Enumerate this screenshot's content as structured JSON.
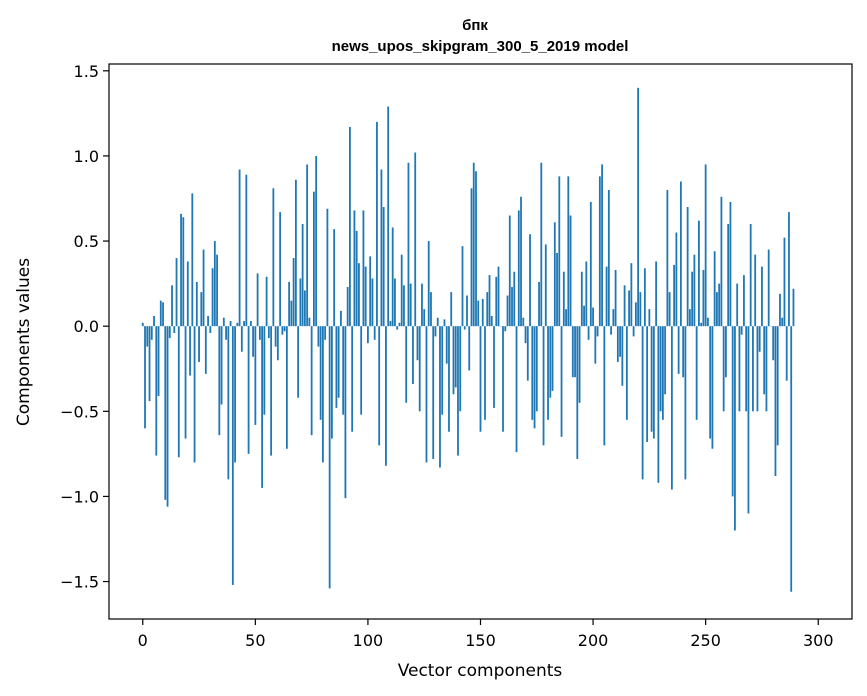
{
  "chart_data": {
    "type": "bar",
    "title": "бпк",
    "subtitle": "news_upos_skipgram_300_5_2019 model",
    "xlabel": "Vector components",
    "ylabel": "Components values",
    "xlim": [
      -15,
      315
    ],
    "ylim": [
      -1.72,
      1.54
    ],
    "xticks": [
      0,
      50,
      100,
      150,
      200,
      250,
      300
    ],
    "yticks": [
      -1.5,
      -1.0,
      -0.5,
      0.0,
      0.5,
      1.0,
      1.5
    ],
    "xtick_labels": [
      "0",
      "50",
      "100",
      "150",
      "200",
      "250",
      "300"
    ],
    "ytick_labels": [
      "−1.5",
      "−1.0",
      "−0.5",
      "0.0",
      "0.5",
      "1.0",
      "1.5"
    ],
    "bar_color": "#1f77b4",
    "values": [
      0.02,
      -0.6,
      -0.12,
      -0.44,
      -0.08,
      0.06,
      -0.76,
      -0.41,
      0.15,
      0.14,
      -1.02,
      -1.06,
      -0.07,
      0.24,
      -0.04,
      0.4,
      -0.77,
      0.66,
      0.64,
      -0.66,
      0.38,
      -0.29,
      0.78,
      -0.8,
      0.26,
      -0.21,
      0.2,
      0.45,
      -0.28,
      0.06,
      -0.04,
      0.34,
      0.5,
      0.42,
      -0.64,
      -0.46,
      0.05,
      -0.08,
      -0.9,
      0.03,
      -1.52,
      -0.8,
      0.02,
      0.92,
      -0.15,
      0.03,
      0.89,
      -0.75,
      0.03,
      -0.18,
      -0.58,
      0.31,
      -0.08,
      -0.95,
      -0.52,
      0.29,
      -0.07,
      -0.76,
      0.81,
      -0.12,
      -0.2,
      0.67,
      -0.05,
      -0.03,
      -0.72,
      0.26,
      0.15,
      0.4,
      0.86,
      -0.42,
      0.28,
      0.6,
      0.21,
      0.95,
      0.05,
      -0.64,
      0.79,
      1.0,
      -0.12,
      -0.55,
      -0.8,
      -0.08,
      0.69,
      -1.54,
      -0.66,
      0.57,
      -0.48,
      -0.42,
      0.09,
      -0.52,
      -1.01,
      0.23,
      1.17,
      -0.62,
      0.68,
      0.56,
      0.37,
      -0.52,
      0.68,
      0.35,
      -0.1,
      0.41,
      0.28,
      -0.08,
      1.2,
      -0.7,
      0.92,
      0.7,
      -0.82,
      1.29,
      0.03,
      0.58,
      0.28,
      -0.02,
      0.02,
      0.42,
      0.24,
      -0.45,
      0.96,
      0.25,
      -0.34,
      1.02,
      -0.2,
      -0.5,
      0.25,
      0.1,
      -0.8,
      0.5,
      0.2,
      -0.78,
      -0.06,
      0.05,
      -0.83,
      -0.52,
      0.04,
      -0.22,
      -0.62,
      0.2,
      -0.4,
      -0.36,
      -0.76,
      -0.5,
      0.47,
      -0.02,
      0.18,
      -0.26,
      0.81,
      0.96,
      0.91,
      0.15,
      -0.62,
      0.16,
      -0.55,
      0.2,
      0.3,
      0.06,
      -0.48,
      0.29,
      0.35,
      0.0,
      -0.62,
      -0.03,
      0.18,
      0.65,
      0.23,
      0.32,
      -0.74,
      0.68,
      0.76,
      0.05,
      -0.1,
      -0.32,
      0.54,
      -0.55,
      -0.6,
      -0.5,
      0.26,
      0.96,
      -0.7,
      0.48,
      -0.55,
      -0.42,
      -0.38,
      0.61,
      0.43,
      0.88,
      -0.65,
      0.32,
      0.1,
      0.88,
      0.65,
      -0.3,
      -0.3,
      -0.78,
      -0.45,
      0.32,
      0.12,
      0.38,
      -0.08,
      0.73,
      0.11,
      -0.22,
      -0.06,
      0.88,
      0.95,
      -0.7,
      0.35,
      0.8,
      -0.05,
      0.1,
      0.33,
      -0.21,
      -0.18,
      -0.35,
      0.24,
      -0.55,
      0.21,
      0.37,
      -0.06,
      0.14,
      1.4,
      0.2,
      -0.9,
      0.34,
      -0.68,
      0.1,
      -0.62,
      -0.66,
      0.38,
      -0.92,
      -0.5,
      -0.55,
      -0.4,
      0.8,
      0.2,
      -0.96,
      0.36,
      0.55,
      -0.28,
      0.85,
      -0.3,
      -0.9,
      0.7,
      0.1,
      0.32,
      0.42,
      -0.55,
      0.62,
      0.02,
      0.33,
      0.95,
      0.05,
      -0.66,
      -0.72,
      0.44,
      0.2,
      0.25,
      0.76,
      -0.5,
      -0.3,
      0.6,
      0.73,
      -1.0,
      -1.2,
      0.25,
      -0.5,
      -0.05,
      0.3,
      -0.5,
      -1.1,
      0.6,
      -0.5,
      0.42,
      -0.5,
      -0.15,
      0.35,
      -0.4,
      -0.5,
      0.45,
      0.0,
      -0.2,
      -0.88,
      -0.7,
      0.19,
      0.05,
      0.52,
      -0.32,
      0.67,
      -1.56,
      0.22
    ]
  }
}
